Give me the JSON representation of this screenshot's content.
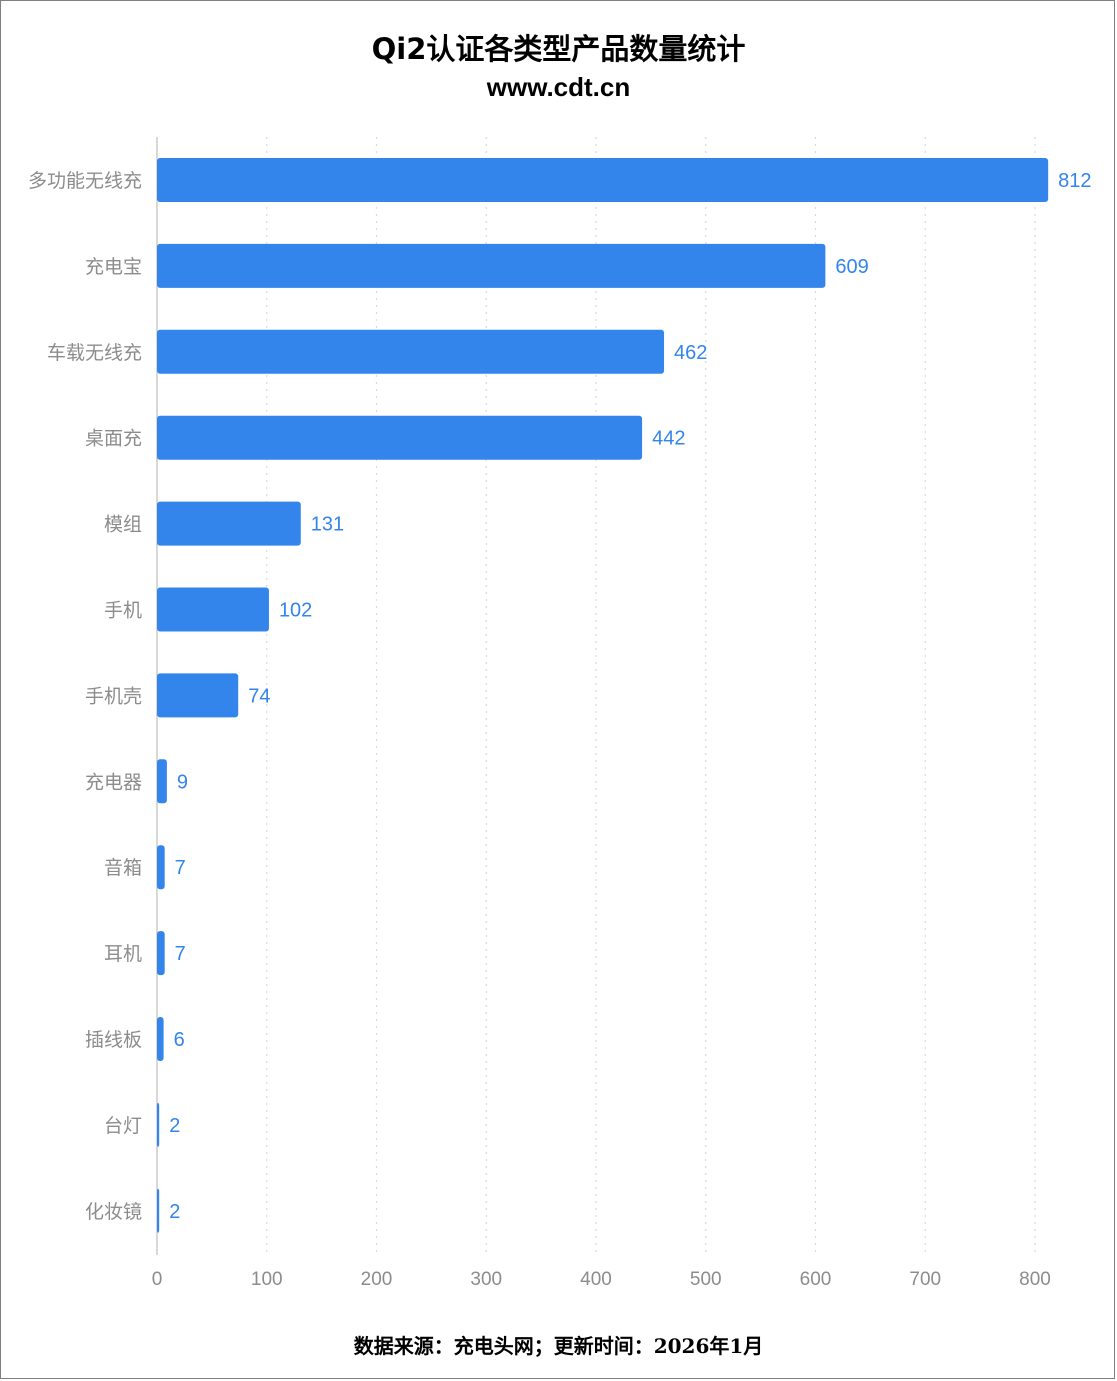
{
  "title": "Qi2认证各类型产品数量统计",
  "subtitle": "www.cdt.cn",
  "footer": "数据来源：充电头网；更新时间：2026年1月",
  "colors": {
    "bar": "#3385ec",
    "value_label": "#3385ec",
    "axis_label": "#8c8c8c",
    "grid": "#d9d9d9",
    "axis_line": "#cccccc"
  },
  "chart_data": {
    "type": "bar",
    "orientation": "horizontal",
    "categories": [
      "多功能无线充",
      "充电宝",
      "车载无线充",
      "桌面充",
      "模组",
      "手机",
      "手机壳",
      "充电器",
      "音箱",
      "耳机",
      "插线板",
      "台灯",
      "化妆镜"
    ],
    "values": [
      812,
      609,
      462,
      442,
      131,
      102,
      74,
      9,
      7,
      7,
      6,
      2,
      2
    ],
    "xlim": [
      0,
      800
    ],
    "xticks": [
      0,
      100,
      200,
      300,
      400,
      500,
      600,
      700,
      800
    ],
    "grid": true,
    "grid_style": "dotted vertical",
    "data_labels": true
  }
}
